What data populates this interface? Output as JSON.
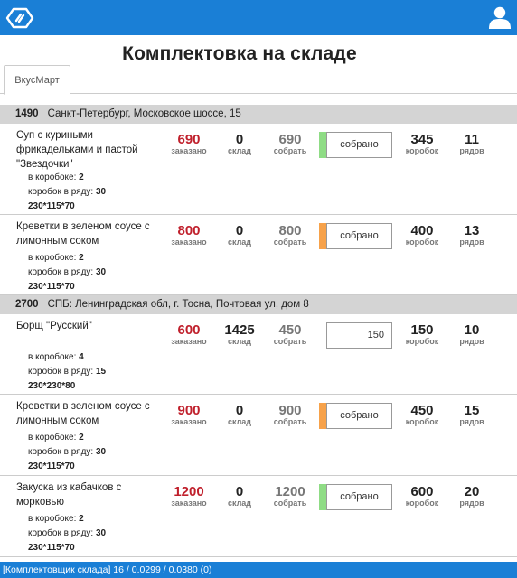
{
  "header": {
    "logo_icon": "app-logo-icon",
    "user_icon": "user-icon"
  },
  "page": {
    "title": "Комплектовка на складе"
  },
  "tabs": [
    {
      "label": "ВкусМарт"
    }
  ],
  "groups": [
    {
      "id": "1490",
      "address": "Санкт-Петербург, Московское шоссе, 15",
      "items": [
        {
          "name": "Суп с куриными фрикадельками и пастой \"Звездочки\"",
          "ordered": "690",
          "stock": "0",
          "collect": "690",
          "status_color": "#8fdc85",
          "input_value": "собрано",
          "boxes": "345",
          "rows": "11",
          "per_box_label": "в коробоке:",
          "per_box": "2",
          "per_row_label": "коробок в ряду:",
          "per_row": "30",
          "dims": "230*115*70"
        },
        {
          "name": "Креветки в зеленом соусе с лимонным соком",
          "ordered": "800",
          "stock": "0",
          "collect": "800",
          "status_color": "#f7a24a",
          "input_value": "собрано",
          "boxes": "400",
          "rows": "13",
          "per_box_label": "в коробоке:",
          "per_box": "2",
          "per_row_label": "коробок в ряду:",
          "per_row": "30",
          "dims": "230*115*70"
        }
      ]
    },
    {
      "id": "2700",
      "address": "СПБ: Ленинградская обл, г. Тосна, Почтовая ул, дом 8",
      "items": [
        {
          "name": "Борщ \"Русский\"",
          "ordered": "600",
          "stock": "1425",
          "collect": "450",
          "status_color": "",
          "input_value": "150",
          "boxes": "150",
          "rows": "10",
          "per_box_label": "в коробоке:",
          "per_box": "4",
          "per_row_label": "коробок в ряду:",
          "per_row": "15",
          "dims": "230*230*80"
        },
        {
          "name": "Креветки в зеленом соусе с лимонным соком",
          "ordered": "900",
          "stock": "0",
          "collect": "900",
          "status_color": "#f7a24a",
          "input_value": "собрано",
          "boxes": "450",
          "rows": "15",
          "per_box_label": "в коробоке:",
          "per_box": "2",
          "per_row_label": "коробок в ряду:",
          "per_row": "30",
          "dims": "230*115*70"
        },
        {
          "name": "Закуска из кабачков с морковью",
          "ordered": "1200",
          "stock": "0",
          "collect": "1200",
          "status_color": "#8fdc85",
          "input_value": "собрано",
          "boxes": "600",
          "rows": "20",
          "per_box_label": "в коробоке:",
          "per_box": "2",
          "per_row_label": "коробок в ряду:",
          "per_row": "30",
          "dims": "230*115*70"
        }
      ]
    }
  ],
  "labels": {
    "ordered": "заказано",
    "stock": "склад",
    "collect": "собрать",
    "boxes": "коробок",
    "rows": "рядов"
  },
  "status": {
    "text": "[Комплектовщик склада] 16 / 0.0299 / 0.0380 (0)"
  }
}
